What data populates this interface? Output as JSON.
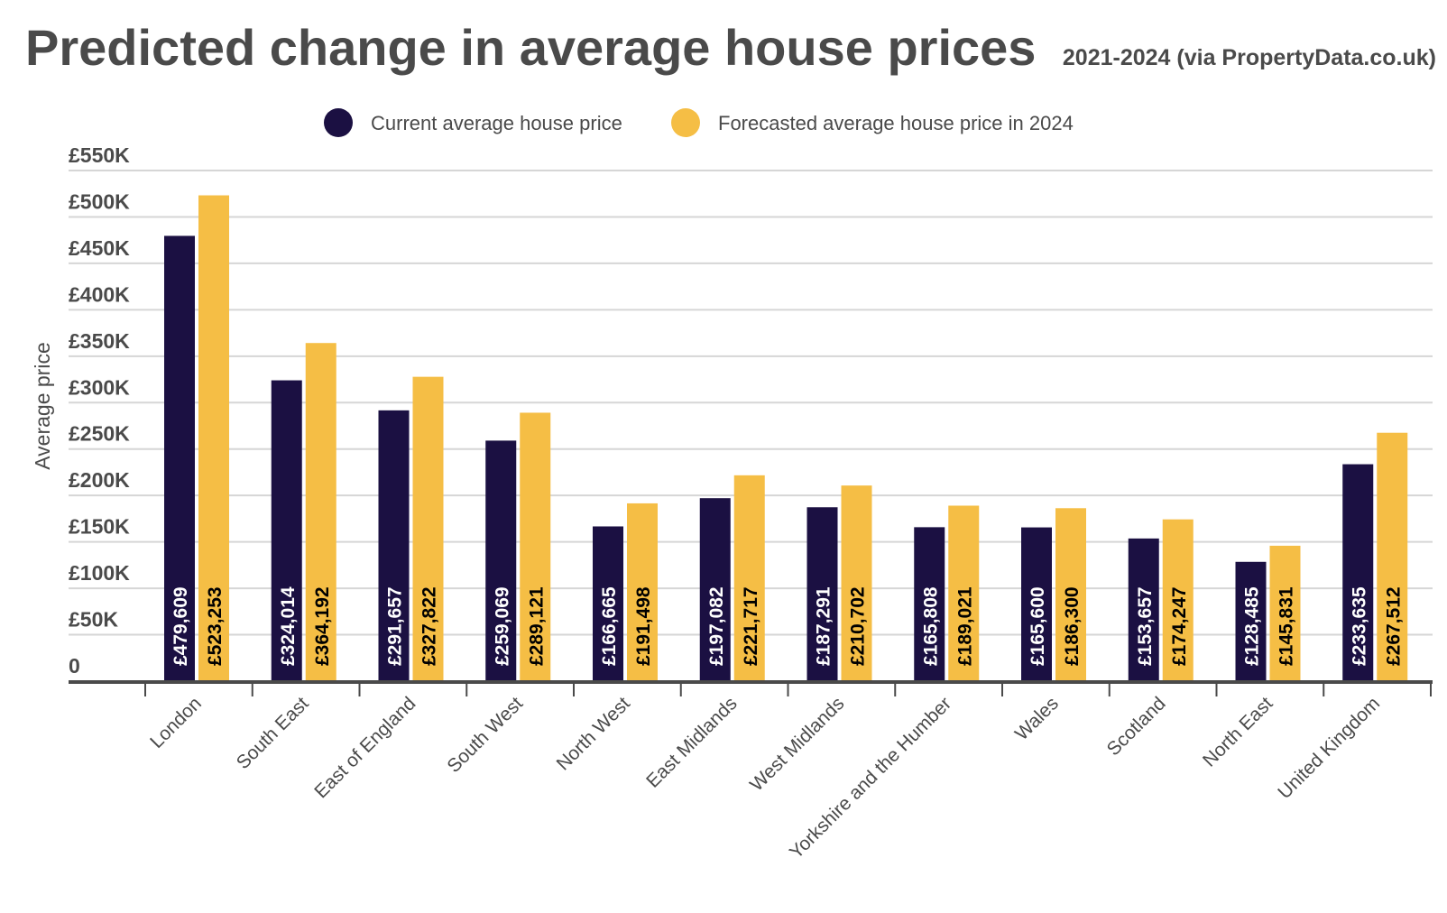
{
  "chart_data": {
    "type": "bar",
    "title": "Predicted change in average house prices",
    "subtitle": "2021-2024 (via PropertyData.co.uk)",
    "xlabel": "",
    "ylabel": "Average price",
    "ylim": [
      0,
      550000
    ],
    "yticks": [
      0,
      50000,
      100000,
      150000,
      200000,
      250000,
      300000,
      350000,
      400000,
      450000,
      500000,
      550000
    ],
    "ytick_labels": [
      "0",
      "£50K",
      "£100K",
      "£150K",
      "£200K",
      "£250K",
      "£300K",
      "£350K",
      "£400K",
      "£450K",
      "£500K",
      "£550K"
    ],
    "grid": true,
    "legend_position": "top-center",
    "categories": [
      "London",
      "South East",
      "East of England",
      "South West",
      "North West",
      "East Midlands",
      "West Midlands",
      "Yorkshire and the Humber",
      "Wales",
      "Scotland",
      "North East",
      "United Kingdom"
    ],
    "series": [
      {
        "name": "Current average house price",
        "color": "#1b1042",
        "label_color": "#ffffff",
        "values": [
          479609,
          324014,
          291657,
          259069,
          166665,
          197082,
          187291,
          165808,
          165600,
          153657,
          128485,
          233635
        ],
        "labels": [
          "£479,609",
          "£324,014",
          "£291,657",
          "£259,069",
          "£166,665",
          "£197,082",
          "£187,291",
          "£165,808",
          "£165,600",
          "£153,657",
          "£128,485",
          "£233,635"
        ]
      },
      {
        "name": "Forecasted average house price in 2024",
        "color": "#f5be45",
        "label_color": "#000000",
        "values": [
          523253,
          364192,
          327822,
          289121,
          191498,
          221717,
          210702,
          189021,
          186300,
          174247,
          145831,
          267512
        ],
        "labels": [
          "£523,253",
          "£364,192",
          "£327,822",
          "£289,121",
          "£191,498",
          "£221,717",
          "£210,702",
          "£189,021",
          "£186,300",
          "£174,247",
          "£145,831",
          "£267,512"
        ]
      }
    ]
  }
}
